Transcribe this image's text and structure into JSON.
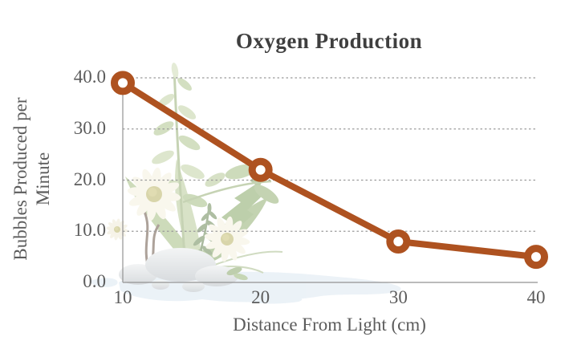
{
  "title": "Oxygen Production",
  "chart_data": {
    "type": "line",
    "title": "Oxygen Production",
    "xlabel": "Distance From Light (cm)",
    "ylabel": "Bubbles Produced per Minute",
    "ylabel_lines": [
      "Bubbles Produced per",
      "Minute"
    ],
    "x": [
      10,
      20,
      30,
      40
    ],
    "values": [
      39,
      22,
      8,
      5
    ],
    "series": [
      {
        "name": "Bubbles Produced per Minute",
        "x": [
          10,
          20,
          30,
          40
        ],
        "values": [
          39,
          22,
          8,
          5
        ]
      }
    ],
    "xlim": [
      10,
      40
    ],
    "ylim": [
      0,
      40
    ],
    "x_ticks": [
      {
        "value": 10,
        "label": "10"
      },
      {
        "value": 20,
        "label": "20"
      },
      {
        "value": 30,
        "label": "30"
      },
      {
        "value": 40,
        "label": "40"
      }
    ],
    "y_ticks": [
      {
        "value": 0,
        "label": "0.0"
      },
      {
        "value": 10,
        "label": "10.0"
      },
      {
        "value": 20,
        "label": "20.0"
      },
      {
        "value": 30,
        "label": "30.0"
      },
      {
        "value": 40,
        "label": "40.0"
      }
    ],
    "grid": "horizontal-dotted",
    "legend": "none",
    "marker": "ring"
  },
  "colors": {
    "line": "#ae5220",
    "marker_fill": "#ffffff",
    "title_text": "#3f3f3f",
    "axis_text": "#5c5c5c",
    "gridline": "#9b9b9b",
    "axis_line": "#929292",
    "background": "#ffffff"
  },
  "decor": {
    "watermark": "aquatic-plant-with-daisies-stones-and-water",
    "watermark_opacity": 0.5
  }
}
